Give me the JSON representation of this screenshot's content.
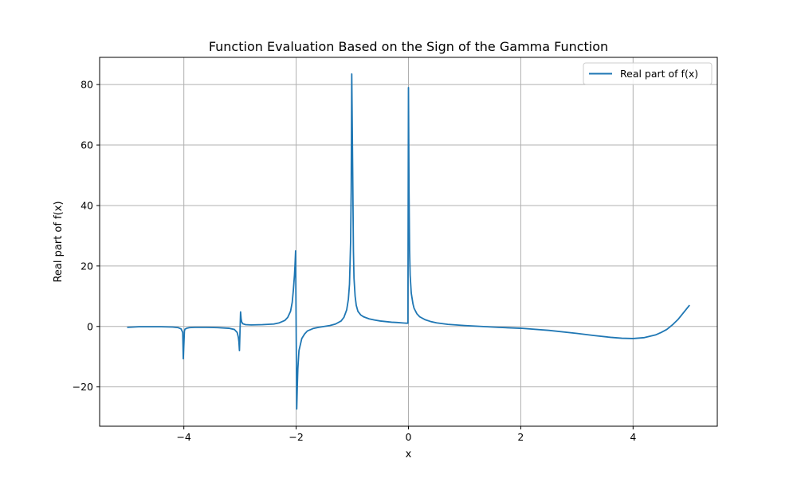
{
  "chart_data": {
    "type": "line",
    "title": "Function Evaluation Based on the Sign of the Gamma Function",
    "xlabel": "x",
    "ylabel": "Real part of f(x)",
    "xlim": [
      -5.5,
      5.5
    ],
    "ylim": [
      -33,
      89
    ],
    "xticks": [
      -4,
      -2,
      0,
      2,
      4
    ],
    "xtick_labels": [
      "−4",
      "−2",
      "0",
      "2",
      "4"
    ],
    "yticks": [
      -20,
      0,
      20,
      40,
      60,
      80
    ],
    "ytick_labels": [
      "−20",
      "0",
      "20",
      "40",
      "60",
      "80"
    ],
    "grid": true,
    "legend_position": "top-right",
    "series": [
      {
        "name": "Real part of f(x)",
        "color": "#1f77b4",
        "x": [
          -5.0,
          -4.8,
          -4.6,
          -4.4,
          -4.2,
          -4.1,
          -4.05,
          -4.02,
          -4.01,
          -3.99,
          -3.98,
          -3.95,
          -3.9,
          -3.8,
          -3.6,
          -3.4,
          -3.2,
          -3.1,
          -3.05,
          -3.03,
          -3.02,
          -3.01,
          -2.99,
          -2.98,
          -2.97,
          -2.95,
          -2.9,
          -2.8,
          -2.6,
          -2.4,
          -2.3,
          -2.2,
          -2.15,
          -2.1,
          -2.07,
          -2.05,
          -2.03,
          -2.02,
          -2.01,
          -1.99,
          -1.98,
          -1.97,
          -1.95,
          -1.9,
          -1.85,
          -1.8,
          -1.7,
          -1.6,
          -1.5,
          -1.4,
          -1.3,
          -1.2,
          -1.15,
          -1.1,
          -1.07,
          -1.05,
          -1.03,
          -1.02,
          -1.01,
          -0.99,
          -0.98,
          -0.97,
          -0.95,
          -0.93,
          -0.9,
          -0.85,
          -0.8,
          -0.7,
          -0.6,
          -0.5,
          -0.4,
          -0.3,
          -0.2,
          -0.1,
          -0.01,
          0.0,
          0.01,
          0.02,
          0.03,
          0.05,
          0.08,
          0.1,
          0.15,
          0.2,
          0.3,
          0.4,
          0.5,
          0.7,
          1.0,
          1.3,
          1.6,
          2.0,
          2.5,
          3.0,
          3.3,
          3.6,
          3.8,
          4.0,
          4.2,
          4.4,
          4.5,
          4.6,
          4.7,
          4.8,
          4.9,
          5.0
        ],
        "y": [
          -0.3,
          -0.1,
          -0.1,
          -0.1,
          -0.2,
          -0.4,
          -0.8,
          -2.0,
          -10.7,
          -1.5,
          -0.9,
          -0.6,
          -0.4,
          -0.3,
          -0.3,
          -0.4,
          -0.6,
          -1.0,
          -2.0,
          -3.5,
          -5.0,
          -8.0,
          4.8,
          2.5,
          1.5,
          0.9,
          0.6,
          0.5,
          0.6,
          0.8,
          1.2,
          2.0,
          3.0,
          5.0,
          8.0,
          12.0,
          17.0,
          20.5,
          25.0,
          -27.3,
          -20.0,
          -14.0,
          -8.0,
          -4.0,
          -2.5,
          -1.5,
          -0.7,
          -0.3,
          0.0,
          0.3,
          0.8,
          1.8,
          3.0,
          5.5,
          9.0,
          14.0,
          28.0,
          45.0,
          83.5,
          45.0,
          25.0,
          16.0,
          10.0,
          7.0,
          5.0,
          3.8,
          3.2,
          2.5,
          2.1,
          1.8,
          1.6,
          1.4,
          1.3,
          1.15,
          1.05,
          79.0,
          45.0,
          25.0,
          17.0,
          11.0,
          7.5,
          6.0,
          4.2,
          3.2,
          2.2,
          1.6,
          1.2,
          0.7,
          0.3,
          0.0,
          -0.3,
          -0.6,
          -1.3,
          -2.3,
          -3.0,
          -3.6,
          -3.9,
          -4.0,
          -3.7,
          -2.8,
          -2.0,
          -1.0,
          0.5,
          2.3,
          4.6,
          6.9
        ]
      }
    ]
  }
}
